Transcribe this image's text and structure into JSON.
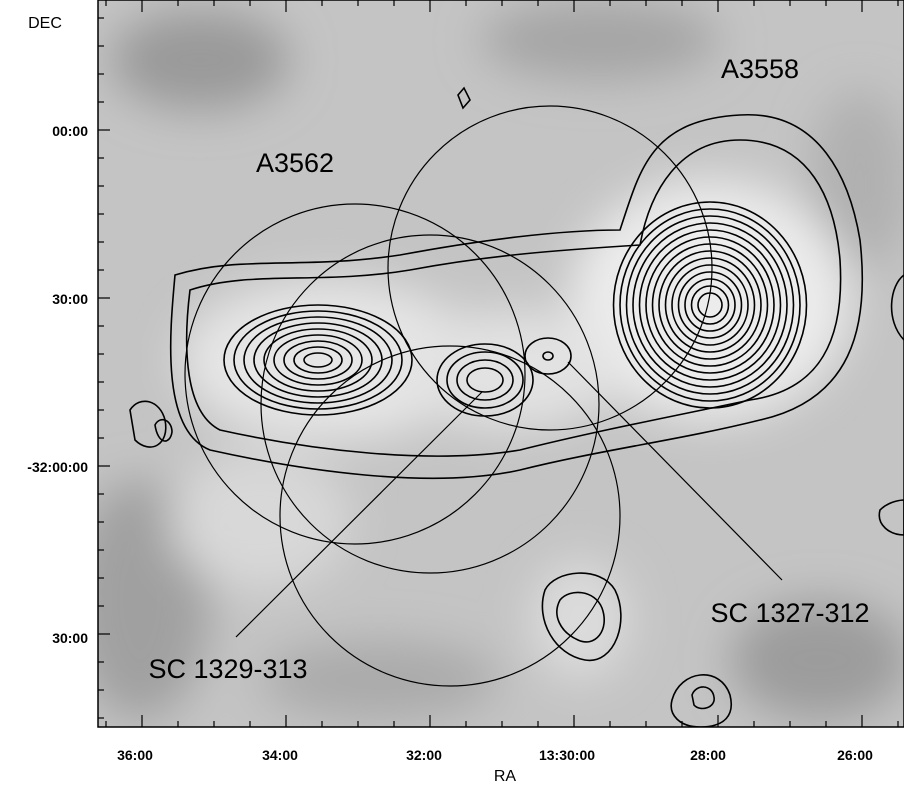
{
  "figure": {
    "x_axis": {
      "label": "RA",
      "tick_labels": [
        "36:00",
        "34:00",
        "32:00",
        "13:30:00",
        "28:00",
        "26:00"
      ]
    },
    "y_axis": {
      "label": "DEC",
      "tick_labels": [
        "00:00",
        "30:00",
        "-32:00:00",
        "30:00"
      ]
    },
    "annotations": [
      "A3558",
      "A3562",
      "SC 1327-312",
      "SC 1329-313"
    ]
  }
}
